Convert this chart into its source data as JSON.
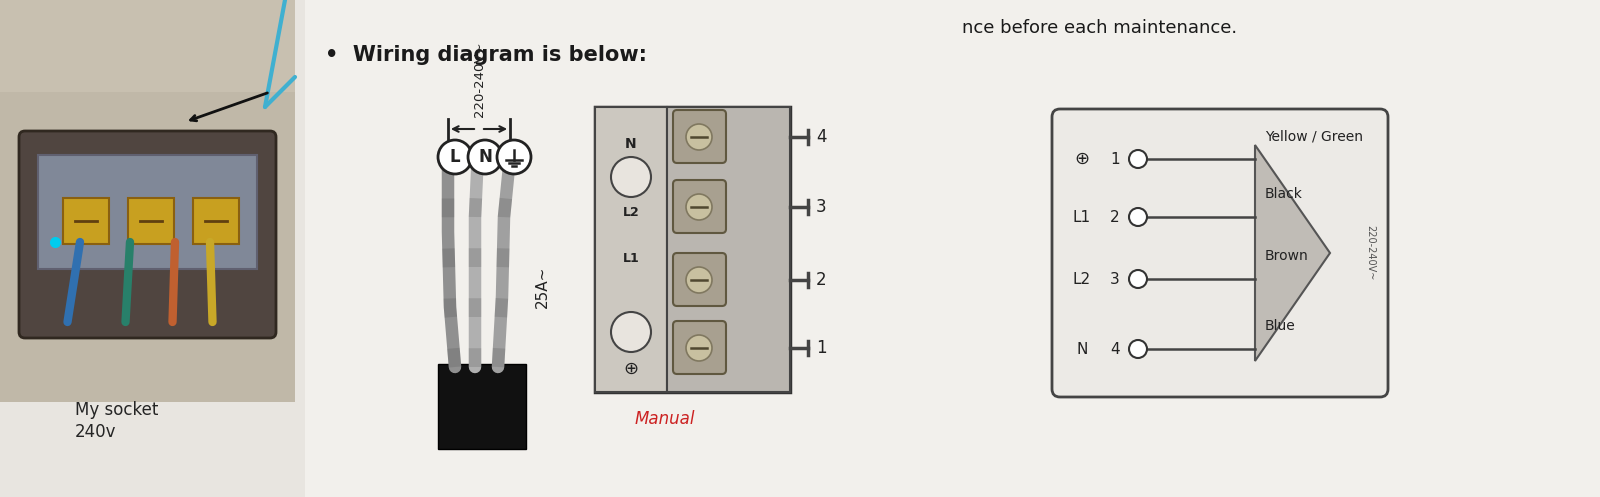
{
  "bg_color": "#e8e5e0",
  "photo_bg": "#c0b8a8",
  "white_bg": "#f2f0ec",
  "text_color": "#1a1a1a",
  "title_text": "•  Wiring diagram is below:",
  "top_text": "nce before each maintenance.",
  "caption_text1": "My socket",
  "caption_text2": "240v",
  "voltage_label": "220-240V~",
  "current_label": "25A~",
  "manual_label": "Manual",
  "manual_color": "#cc2222",
  "side_numbers": [
    "1",
    "2",
    "3",
    "4"
  ],
  "terminal_labels": [
    "Yellow / Green",
    "Black",
    "Brown",
    "Blue"
  ],
  "row_syms": [
    "⊕",
    "L1",
    "L2",
    "N"
  ],
  "row_nums": [
    "1",
    "2",
    "3",
    "4"
  ],
  "figsize": [
    16.0,
    4.97
  ],
  "dpi": 100
}
